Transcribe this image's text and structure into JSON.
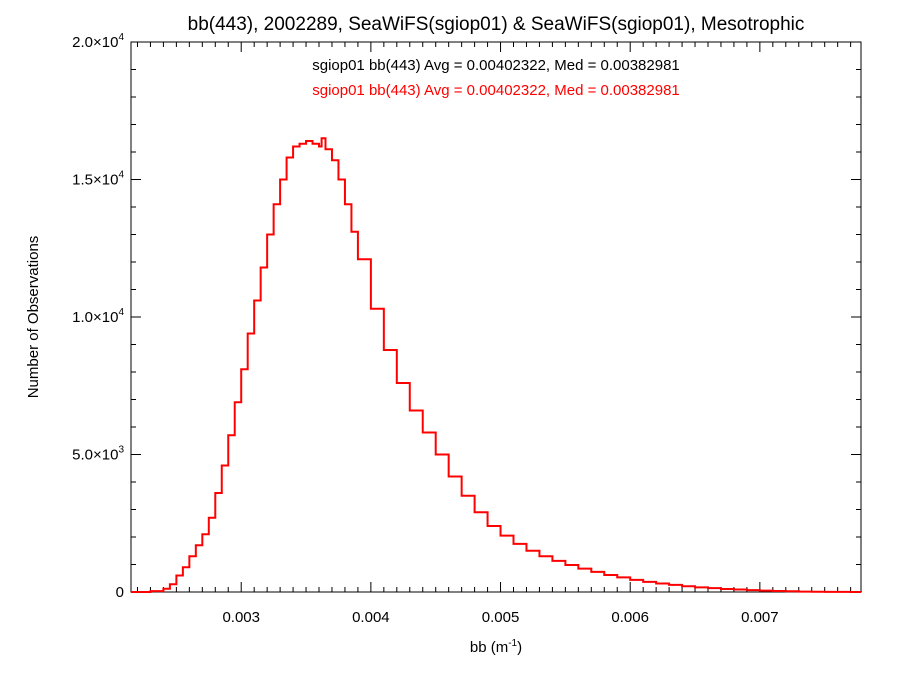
{
  "chart_data": {
    "type": "line",
    "title": "bb(443), 2002289, SeaWiFS(sgiop01) & SeaWiFS(sgiop01), Mesotrophic",
    "xlabel_base": "bb (m",
    "xlabel_sup": "-1",
    "xlabel_close": ")",
    "ylabel": "Number of Observations",
    "xlim": [
      0.00215,
      0.00778
    ],
    "ylim": [
      0,
      20000
    ],
    "x_ticks": [
      0.003,
      0.004,
      0.005,
      0.006,
      0.007
    ],
    "x_tick_labels": [
      "0.003",
      "0.004",
      "0.005",
      "0.006",
      "0.007"
    ],
    "y_ticks": [
      {
        "value": 0,
        "mant": "0",
        "times": "",
        "exp": ""
      },
      {
        "value": 5000,
        "mant": "5.0",
        "times": "×10",
        "exp": "3"
      },
      {
        "value": 10000,
        "mant": "1.0",
        "times": "×10",
        "exp": "4"
      },
      {
        "value": 15000,
        "mant": "1.5",
        "times": "×10",
        "exp": "4"
      },
      {
        "value": 20000,
        "mant": "2.0",
        "times": "×10",
        "exp": "4"
      }
    ],
    "annotations": [
      {
        "text": "sgiop01 bb(443) Avg = 0.00402322, Med = 0.00382981",
        "color": "#000000"
      },
      {
        "text": "sgiop01 bb(443) Avg = 0.00402322, Med = 0.00382981",
        "color": "#ff0000"
      }
    ],
    "series": [
      {
        "color": "#ff0000",
        "step": true,
        "x": [
          0.00215,
          0.0022,
          0.0023,
          0.0024,
          0.00245,
          0.0025,
          0.00255,
          0.0026,
          0.00265,
          0.0027,
          0.00275,
          0.0028,
          0.00285,
          0.0029,
          0.00295,
          0.003,
          0.00305,
          0.0031,
          0.00315,
          0.0032,
          0.00325,
          0.0033,
          0.00335,
          0.0034,
          0.00345,
          0.0035,
          0.00355,
          0.0036,
          0.00362,
          0.00365,
          0.0037,
          0.00375,
          0.0038,
          0.00385,
          0.0039,
          0.004,
          0.0041,
          0.0042,
          0.0043,
          0.0044,
          0.0045,
          0.0046,
          0.0047,
          0.0048,
          0.0049,
          0.005,
          0.0051,
          0.0052,
          0.0053,
          0.0054,
          0.0055,
          0.0056,
          0.0057,
          0.0058,
          0.0059,
          0.006,
          0.0061,
          0.0062,
          0.0063,
          0.0064,
          0.0065,
          0.0066,
          0.0067,
          0.0068,
          0.0069,
          0.007,
          0.0071,
          0.0072,
          0.0073,
          0.0074,
          0.0075,
          0.0076,
          0.0077,
          0.00778
        ],
        "y": [
          0,
          0,
          30,
          120,
          280,
          600,
          900,
          1300,
          1700,
          2100,
          2700,
          3600,
          4600,
          5700,
          6900,
          8100,
          9400,
          10600,
          11800,
          13000,
          14100,
          15000,
          15800,
          16200,
          16300,
          16400,
          16300,
          16200,
          16500,
          16100,
          15700,
          15000,
          14100,
          13100,
          12100,
          10300,
          8800,
          7600,
          6600,
          5800,
          5000,
          4200,
          3500,
          2900,
          2400,
          2050,
          1750,
          1500,
          1300,
          1130,
          980,
          850,
          730,
          620,
          530,
          440,
          370,
          310,
          260,
          210,
          170,
          140,
          110,
          90,
          70,
          50,
          35,
          25,
          15,
          10,
          5,
          3,
          2,
          0
        ]
      }
    ]
  }
}
